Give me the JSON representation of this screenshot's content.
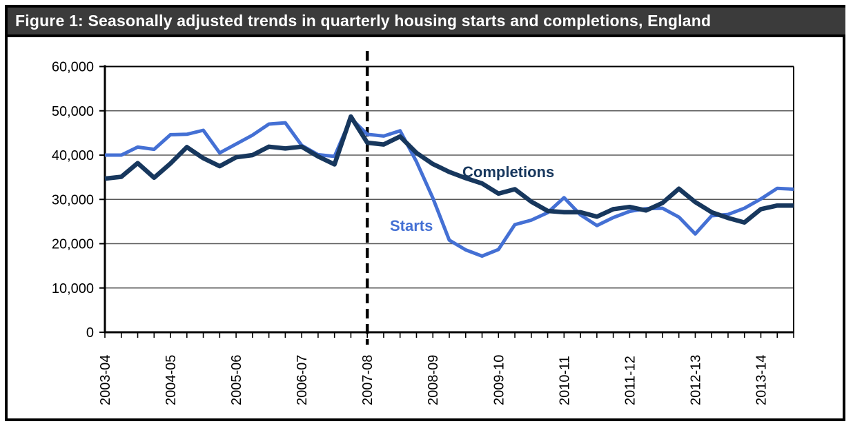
{
  "window": {
    "title": "Figure 1: Seasonally adjusted trends in quarterly housing starts and completions, England",
    "title_bar_bg": "#3b3b3b",
    "title_text_color": "#ffffff"
  },
  "chart_data": {
    "type": "line",
    "title": "Figure 1: Seasonally adjusted trends in quarterly housing starts and completions, England",
    "x_unit": "financial year, quarterly points",
    "x_year_labels": [
      "2003-04",
      "2004-05",
      "2005-06",
      "2006-07",
      "2007-08",
      "2008-09",
      "2009-10",
      "2010-11",
      "2011-12",
      "2012-13",
      "2013-14"
    ],
    "quarters_per_year": 4,
    "n_points": 43,
    "ylim": [
      0,
      60000
    ],
    "y_ticks": [
      0,
      10000,
      20000,
      30000,
      40000,
      50000,
      60000
    ],
    "y_tick_labels": [
      "0",
      "10,000",
      "20,000",
      "30,000",
      "40,000",
      "50,000",
      "60,000"
    ],
    "grid": "horizontal-gray",
    "legend_position": "inline-annotations",
    "dashed_vline_index": 16,
    "dashed_vline_label": "2007-08 Q1",
    "axis_color": "#000000",
    "grid_color": "#595959",
    "series": [
      {
        "name": "Starts",
        "color": "#4470d4",
        "values": [
          40000,
          40000,
          41800,
          41300,
          44600,
          44700,
          45600,
          40500,
          42500,
          44500,
          47000,
          47300,
          42200,
          40100,
          39700,
          48300,
          44700,
          44300,
          45500,
          38500,
          30300,
          20800,
          18600,
          17200,
          18700,
          24300,
          25300,
          27000,
          30400,
          26500,
          24100,
          25900,
          27300,
          27900,
          28000,
          26000,
          22200,
          26300,
          26600,
          28000,
          30100,
          32500,
          32300
        ]
      },
      {
        "name": "Completions",
        "color": "#17375d",
        "values": [
          34700,
          35100,
          38200,
          34900,
          38100,
          41800,
          39300,
          37500,
          39500,
          40000,
          41900,
          41500,
          41900,
          39700,
          37900,
          48700,
          42800,
          42400,
          44200,
          40500,
          38000,
          36200,
          34800,
          33600,
          31300,
          32300,
          29500,
          27400,
          27100,
          27100,
          26100,
          27800,
          28300,
          27500,
          29200,
          32400,
          29400,
          27100,
          25800,
          24800,
          27800,
          28600,
          28600
        ]
      }
    ],
    "annotations": [
      {
        "text": "Starts",
        "series": "Starts"
      },
      {
        "text": "Completions",
        "series": "Completions"
      }
    ]
  }
}
